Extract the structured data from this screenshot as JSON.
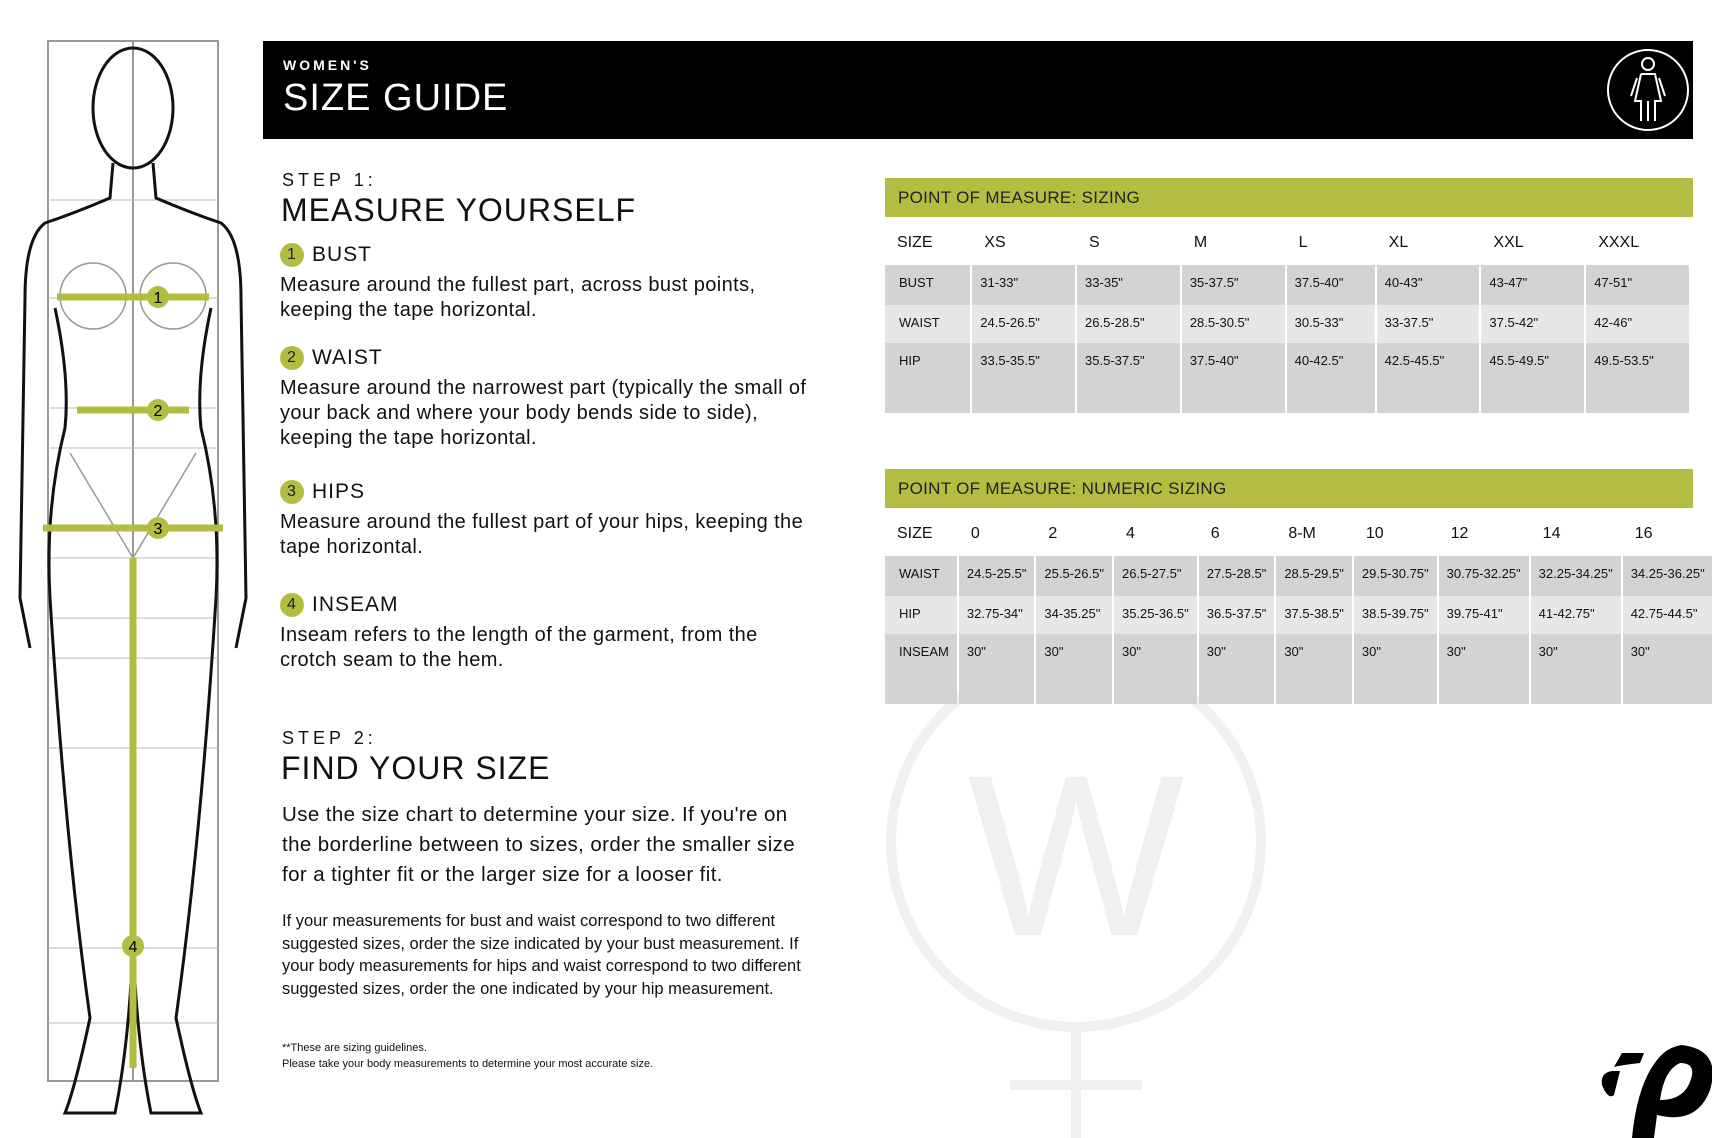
{
  "header": {
    "subtitle": "WOMEN'S",
    "title": "SIZE GUIDE",
    "icon": "woman-figure-icon"
  },
  "step1": {
    "label": "STEP 1:",
    "title": "MEASURE YOURSELF",
    "items": [
      {
        "num": "1",
        "name": "BUST",
        "text": "Measure around the fullest part, across bust points, keeping the tape horizontal."
      },
      {
        "num": "2",
        "name": "WAIST",
        "text": "Measure around the narrowest part (typically the small of your back and where your body bends side to side), keeping the tape horizontal."
      },
      {
        "num": "3",
        "name": "HIPS",
        "text": "Measure around the fullest part of your hips, keeping the tape horizontal."
      },
      {
        "num": "4",
        "name": "INSEAM",
        "text": "Inseam refers to the length of the garment, from the crotch seam to the hem."
      }
    ]
  },
  "step2": {
    "label": "STEP 2:",
    "title": "FIND YOUR SIZE",
    "intro": "Use the size chart to determine your size. If you're on the borderline between to sizes, order the smaller size for a tighter fit or the larger size for a looser fit.",
    "detail": "If your measurements for bust and waist correspond to two different suggested sizes, order the size indicated by your bust measurement. If your body measurements for hips and waist correspond to two different suggested sizes, order the one indicated by your hip measurement.",
    "note1": "**These are sizing guidelines.",
    "note2": "Please take your body measurements to determine your most accurate size."
  },
  "sizing": {
    "title": "POINT OF MEASURE: SIZING",
    "headers": [
      "SIZE",
      "XS",
      "S",
      "M",
      "L",
      "XL",
      "XXL",
      "XXXL"
    ],
    "rows": [
      [
        "BUST",
        "31-33\"",
        "33-35\"",
        "35-37.5\"",
        "37.5-40\"",
        "40-43\"",
        "43-47\"",
        "47-51\""
      ],
      [
        "WAIST",
        "24.5-26.5\"",
        "26.5-28.5\"",
        "28.5-30.5\"",
        "30.5-33\"",
        "33-37.5\"",
        "37.5-42\"",
        "42-46\""
      ],
      [
        "HIP",
        "33.5-35.5\"",
        "35.5-37.5\"",
        "37.5-40\"",
        "40-42.5\"",
        "42.5-45.5\"",
        "45.5-49.5\"",
        "49.5-53.5\""
      ]
    ]
  },
  "numeric": {
    "title": "POINT OF MEASURE: NUMERIC SIZING",
    "headers": [
      "SIZE",
      "0",
      "2",
      "4",
      "6",
      "8-M",
      "10",
      "12",
      "14",
      "16"
    ],
    "rows": [
      [
        "WAIST",
        "24.5-25.5\"",
        "25.5-26.5\"",
        "26.5-27.5\"",
        "27.5-28.5\"",
        "28.5-29.5\"",
        "29.5-30.75\"",
        "30.75-32.25\"",
        "32.25-34.25\"",
        "34.25-36.25\""
      ],
      [
        "HIP",
        "32.75-34\"",
        "34-35.25\"",
        "35.25-36.5\"",
        "36.5-37.5\"",
        "37.5-38.5\"",
        "38.5-39.75\"",
        "39.75-41\"",
        "41-42.75\"",
        "42.75-44.5\""
      ],
      [
        "INSEAM",
        "30\"",
        "30\"",
        "30\"",
        "30\"",
        "30\"",
        "30\"",
        "30\"",
        "30\"",
        "30\""
      ]
    ]
  },
  "colors": {
    "accent": "#b3bd42",
    "header_bg": "#000000",
    "cell_dark": "#d3d3d5",
    "cell_light": "#e6e7e9"
  },
  "watermark": {
    "letter": "W"
  },
  "figure": {
    "markers": [
      "1",
      "2",
      "3",
      "4"
    ]
  }
}
